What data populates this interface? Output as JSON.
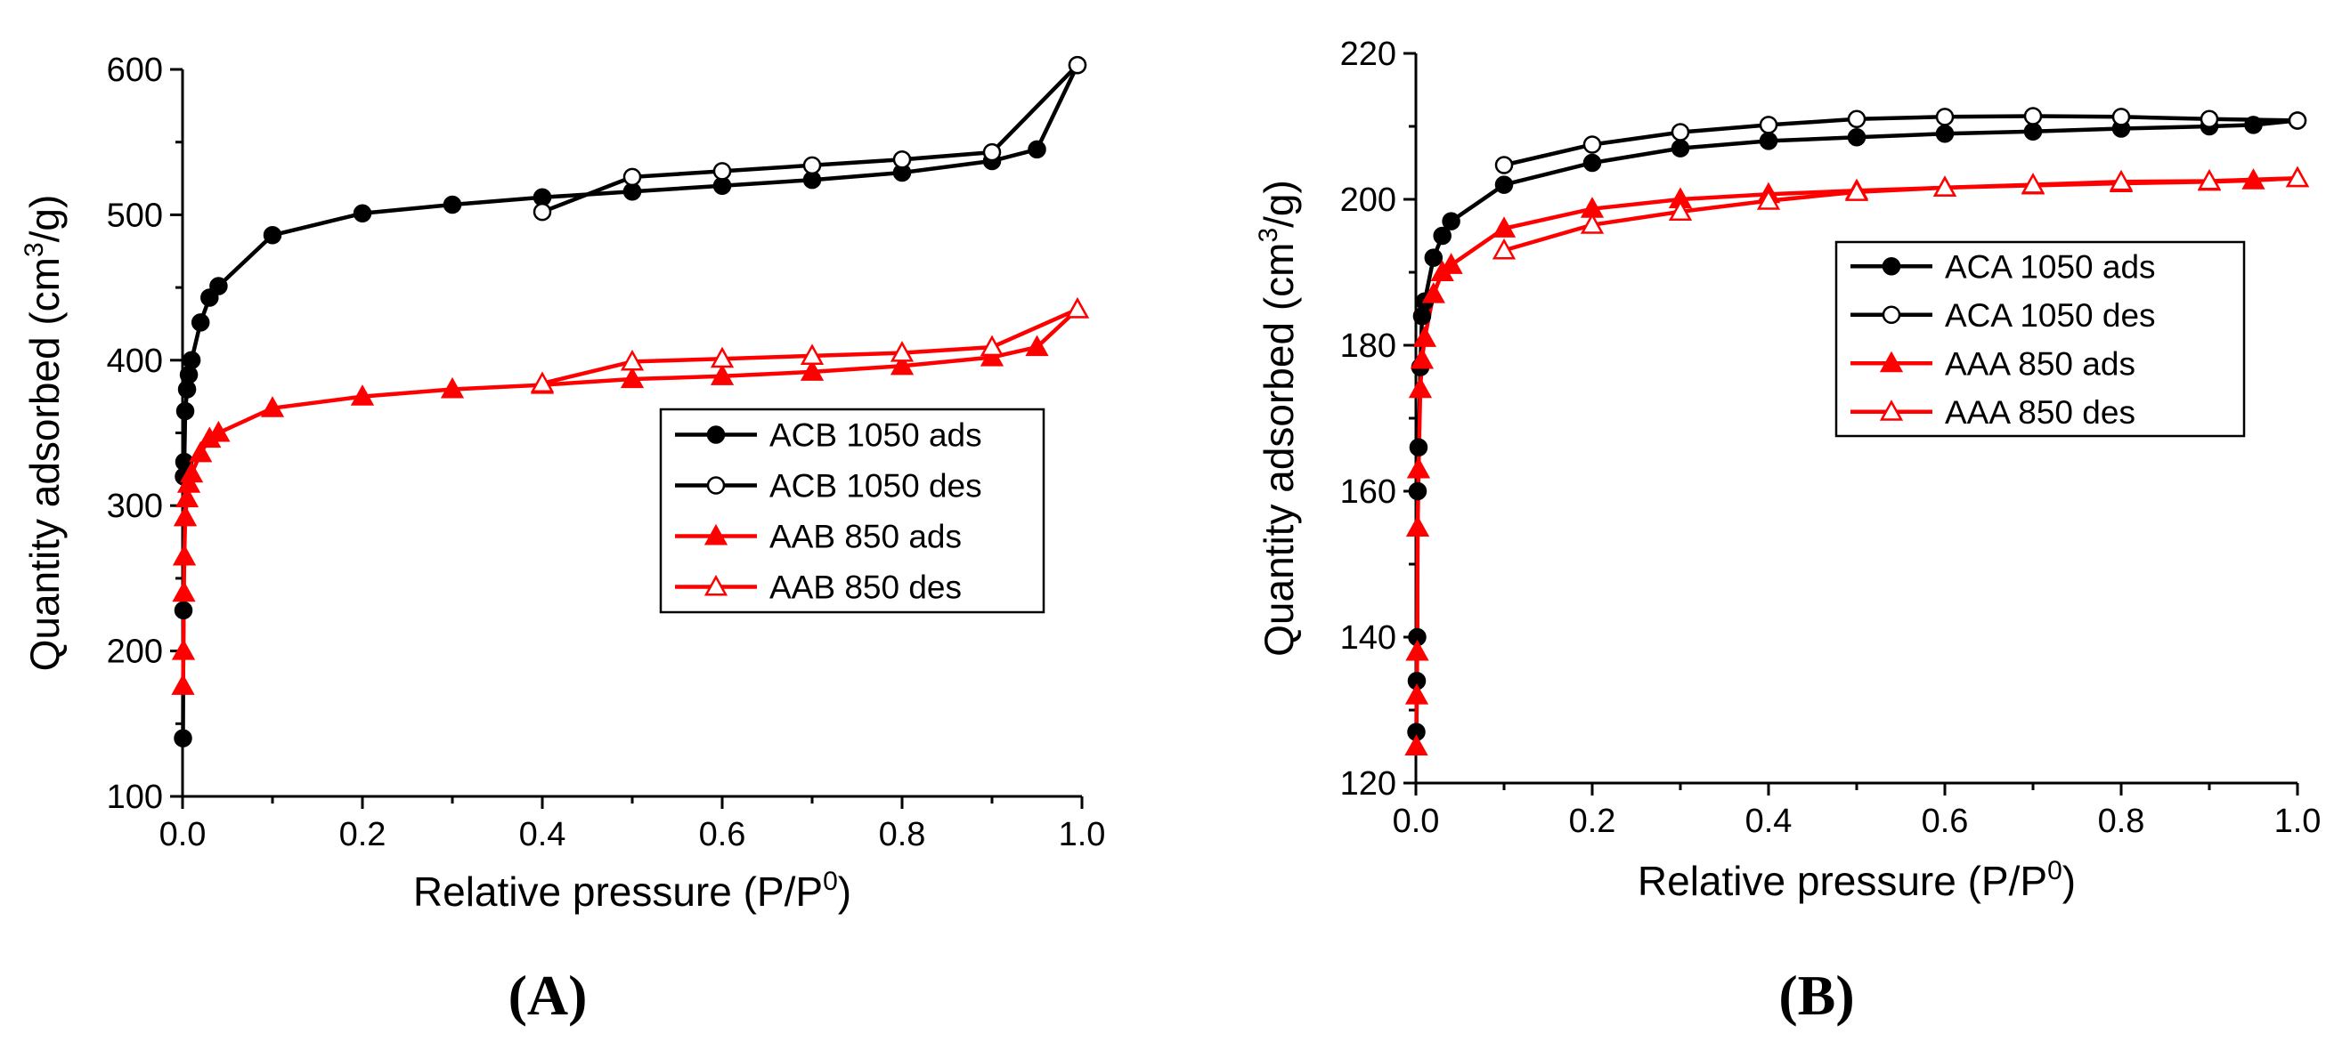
{
  "chart_data": [
    {
      "id": "A",
      "type": "line",
      "panel_label": "(A)",
      "xlabel": "Relative pressure (P/P",
      "xlabel_sup": "0",
      "xlabel_end": ")",
      "ylabel": "Quantity adsorbed (cm",
      "ylabel_sup": "3",
      "ylabel_end": "/g)",
      "xlim": [
        0,
        1.0
      ],
      "ylim": [
        100,
        600
      ],
      "xticks": [
        0.0,
        0.2,
        0.4,
        0.6,
        0.8,
        1.0
      ],
      "xtick_labels": [
        "0.0",
        "0.2",
        "0.4",
        "0.6",
        "0.8",
        "1.0"
      ],
      "yticks": [
        100,
        200,
        300,
        400,
        500,
        600
      ],
      "ytick_labels": [
        "100",
        "200",
        "300",
        "400",
        "500",
        "600"
      ],
      "legend_position": "right",
      "series": [
        {
          "name": "ACB 1050 ads",
          "color": "#000000",
          "marker": "circle",
          "filled": true,
          "x": [
            0.0005,
            0.001,
            0.0015,
            0.002,
            0.003,
            0.005,
            0.007,
            0.01,
            0.02,
            0.03,
            0.04,
            0.1,
            0.2,
            0.3,
            0.4,
            0.5,
            0.6,
            0.7,
            0.8,
            0.9,
            0.95,
            0.995
          ],
          "y": [
            140,
            228,
            320,
            330,
            365,
            380,
            390,
            400,
            426,
            443,
            451,
            486,
            501,
            507,
            512,
            516,
            520,
            524,
            529,
            537,
            545,
            603
          ]
        },
        {
          "name": "ACB 1050 des",
          "color": "#000000",
          "marker": "circle",
          "filled": false,
          "x": [
            0.995,
            0.9,
            0.8,
            0.7,
            0.6,
            0.5,
            0.4
          ],
          "y": [
            603,
            543,
            538,
            534,
            530,
            526,
            502
          ]
        },
        {
          "name": "AAB 850 ads",
          "color": "#ff0000",
          "marker": "triangle",
          "filled": true,
          "x": [
            0.0005,
            0.001,
            0.0015,
            0.002,
            0.003,
            0.005,
            0.007,
            0.01,
            0.02,
            0.03,
            0.04,
            0.1,
            0.2,
            0.3,
            0.4,
            0.5,
            0.6,
            0.7,
            0.8,
            0.9,
            0.95,
            0.995
          ],
          "y": [
            176,
            200,
            240,
            265,
            292,
            305,
            315,
            322,
            336,
            346,
            350,
            367,
            375,
            380,
            383,
            387,
            389,
            392,
            396,
            402,
            409,
            435
          ]
        },
        {
          "name": "AAB 850 des",
          "color": "#ff0000",
          "marker": "triangle",
          "filled": false,
          "x": [
            0.995,
            0.9,
            0.8,
            0.7,
            0.6,
            0.5,
            0.4
          ],
          "y": [
            435,
            409,
            405,
            403,
            401,
            399,
            384
          ]
        }
      ]
    },
    {
      "id": "B",
      "type": "line",
      "panel_label": "(B)",
      "xlabel": "Relative pressure (P/P",
      "xlabel_sup": "0",
      "xlabel_end": ")",
      "ylabel": "Quantity adsorbed (cm",
      "ylabel_sup": "3",
      "ylabel_end": "/g)",
      "xlim": [
        0,
        1.0
      ],
      "ylim": [
        120,
        220
      ],
      "xticks": [
        0.0,
        0.2,
        0.4,
        0.6,
        0.8,
        1.0
      ],
      "xtick_labels": [
        "0.0",
        "0.2",
        "0.4",
        "0.6",
        "0.8",
        "1.0"
      ],
      "yticks": [
        120,
        140,
        160,
        180,
        200,
        220
      ],
      "ytick_labels": [
        "120",
        "140",
        "160",
        "180",
        "200",
        "220"
      ],
      "legend_position": "right",
      "series": [
        {
          "name": "ACA 1050 ads",
          "color": "#000000",
          "marker": "circle",
          "filled": true,
          "x": [
            0.0005,
            0.001,
            0.0015,
            0.002,
            0.003,
            0.005,
            0.007,
            0.01,
            0.02,
            0.03,
            0.04,
            0.1,
            0.2,
            0.3,
            0.4,
            0.5,
            0.6,
            0.7,
            0.8,
            0.9,
            0.95,
            1.0
          ],
          "y": [
            127,
            134,
            140,
            160,
            166,
            177,
            184,
            186,
            192,
            195,
            197,
            202,
            205,
            207,
            208,
            208.5,
            209,
            209.3,
            209.7,
            210,
            210.2,
            210.8
          ]
        },
        {
          "name": "ACA 1050 des",
          "color": "#000000",
          "marker": "circle",
          "filled": false,
          "x": [
            1.0,
            0.9,
            0.8,
            0.7,
            0.6,
            0.5,
            0.4,
            0.3,
            0.2,
            0.1
          ],
          "y": [
            210.8,
            211,
            211.3,
            211.4,
            211.3,
            211,
            210.2,
            209.2,
            207.5,
            204.7
          ]
        },
        {
          "name": "AAA 850 ads",
          "color": "#ff0000",
          "marker": "triangle",
          "filled": true,
          "x": [
            0.0005,
            0.001,
            0.0015,
            0.002,
            0.003,
            0.005,
            0.007,
            0.01,
            0.02,
            0.03,
            0.04,
            0.1,
            0.2,
            0.3,
            0.4,
            0.5,
            0.6,
            0.7,
            0.8,
            0.9,
            0.95,
            1.0
          ],
          "y": [
            125,
            132,
            138,
            155,
            163,
            174,
            178,
            181,
            187,
            190,
            191,
            196,
            198.7,
            200,
            200.7,
            201.2,
            201.6,
            201.9,
            202.2,
            202.4,
            202.6,
            202.9
          ]
        },
        {
          "name": "AAA 850 des",
          "color": "#ff0000",
          "marker": "triangle",
          "filled": false,
          "x": [
            1.0,
            0.9,
            0.8,
            0.7,
            0.6,
            0.5,
            0.4,
            0.3,
            0.2,
            0.1
          ],
          "y": [
            202.9,
            202.5,
            202.4,
            202,
            201.6,
            201,
            199.8,
            198.3,
            196.5,
            193
          ]
        }
      ]
    }
  ]
}
